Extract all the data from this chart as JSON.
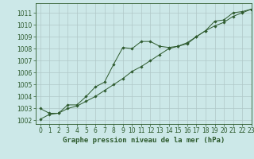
{
  "title": "Graphe pression niveau de la mer (hPa)",
  "background_color": "#cce8e8",
  "grid_color": "#b0c8c8",
  "line_color": "#2d5a2d",
  "marker_color": "#2d5a2d",
  "xlim": [
    -0.5,
    23
  ],
  "ylim": [
    1001.7,
    1011.8
  ],
  "xticks": [
    0,
    1,
    2,
    3,
    4,
    5,
    6,
    7,
    8,
    9,
    10,
    11,
    12,
    13,
    14,
    15,
    16,
    17,
    18,
    19,
    20,
    21,
    22,
    23
  ],
  "yticks": [
    1002,
    1003,
    1004,
    1005,
    1006,
    1007,
    1008,
    1009,
    1010,
    1011
  ],
  "s1_x": [
    0,
    1,
    2,
    3,
    4,
    5,
    6,
    7,
    8,
    9,
    10,
    11,
    12,
    13,
    14,
    15,
    16,
    17,
    18,
    19,
    20,
    21,
    22,
    23
  ],
  "s1_y": [
    1003.0,
    1002.6,
    1002.6,
    1003.3,
    1003.3,
    1004.0,
    1004.8,
    1005.2,
    1006.7,
    1008.1,
    1008.0,
    1008.6,
    1008.6,
    1008.2,
    1008.1,
    1008.2,
    1008.4,
    1009.0,
    1009.5,
    1010.3,
    1010.4,
    1011.0,
    1011.1,
    1011.3
  ],
  "s2_x": [
    0,
    1,
    2,
    3,
    4,
    5,
    6,
    7,
    8,
    9,
    10,
    11,
    12,
    13,
    14,
    15,
    16,
    17,
    18,
    19,
    20,
    21,
    22,
    23
  ],
  "s2_y": [
    1002.1,
    1002.5,
    1002.6,
    1003.0,
    1003.2,
    1003.6,
    1004.0,
    1004.5,
    1005.0,
    1005.5,
    1006.1,
    1006.5,
    1007.0,
    1007.5,
    1008.0,
    1008.2,
    1008.5,
    1009.0,
    1009.5,
    1009.9,
    1010.2,
    1010.7,
    1011.0,
    1011.3
  ],
  "title_fontsize": 6.5,
  "tick_fontsize": 5.5
}
